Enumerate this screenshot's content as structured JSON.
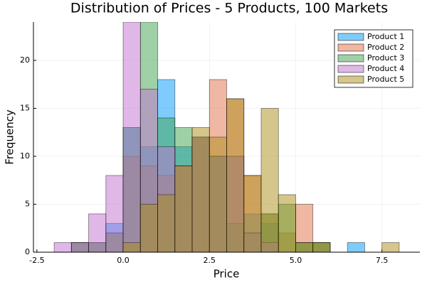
{
  "chart_data": {
    "type": "histogram",
    "title": "Distribution of Prices - 5 Products, 100 Markets",
    "x_label": "Price",
    "y_label": "Frequency",
    "bins": [
      -2,
      -1.5,
      -1,
      -0.5,
      0,
      0.5,
      1,
      1.5,
      2,
      2.5,
      3,
      3.5,
      4,
      4.5,
      5,
      5.5,
      6,
      6.5,
      7,
      7.5,
      8
    ],
    "series": [
      {
        "name": "Product 1",
        "color": "#009af9",
        "values": [
          0,
          1,
          1,
          3,
          13,
          11,
          18,
          11,
          12,
          10,
          10,
          4,
          3,
          0,
          1,
          1,
          0,
          1,
          0,
          0
        ]
      },
      {
        "name": "Product 2",
        "color": "#e26f46",
        "values": [
          0,
          1,
          1,
          2,
          10,
          9,
          8,
          9,
          12,
          18,
          16,
          8,
          4,
          2,
          5,
          1,
          0,
          0,
          0,
          0
        ]
      },
      {
        "name": "Product 3",
        "color": "#3da44d",
        "values": [
          0,
          1,
          1,
          2,
          13,
          24,
          14,
          13,
          12,
          10,
          3,
          2,
          4,
          5,
          1,
          1,
          0,
          0,
          0,
          0
        ]
      },
      {
        "name": "Product 4",
        "color": "#c271d2",
        "values": [
          1,
          1,
          4,
          8,
          24,
          17,
          11,
          9,
          12,
          10,
          10,
          2,
          1,
          0,
          0,
          0,
          0,
          0,
          0,
          0
        ]
      },
      {
        "name": "Product 5",
        "color": "#ac8e18",
        "values": [
          0,
          0,
          0,
          0,
          1,
          5,
          6,
          9,
          13,
          12,
          16,
          8,
          15,
          6,
          1,
          1,
          0,
          0,
          0,
          1
        ]
      }
    ],
    "xlim": [
      -2.6,
      8.6
    ],
    "ylim": [
      0,
      24
    ],
    "xticks": [
      -2.5,
      {
        "value": 0,
        "label": "0.0"
      },
      2.5,
      {
        "value": 5,
        "label": "5.0"
      },
      7.5
    ],
    "yticks": [
      0,
      5,
      10,
      15,
      20
    ],
    "grid": true,
    "legend": "top-right",
    "opacity": 0.5
  }
}
